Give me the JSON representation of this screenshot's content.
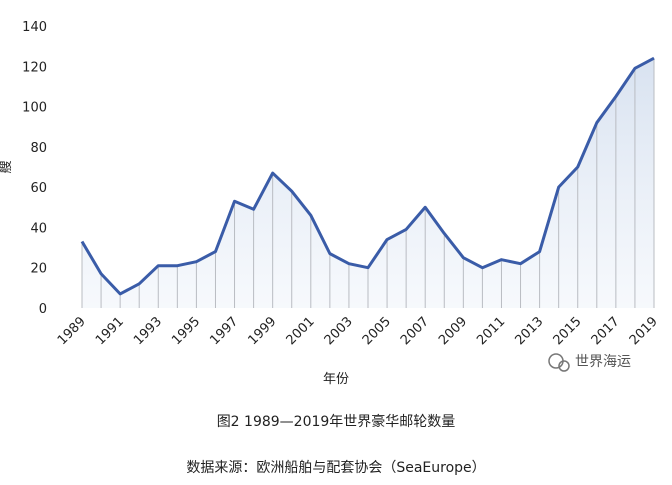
{
  "chart_data": {
    "type": "line",
    "categories": [
      "1989",
      null,
      "1991",
      null,
      "1993",
      null,
      "1995",
      null,
      "1997",
      null,
      "1999",
      null,
      "2001",
      null,
      "2003",
      null,
      "2005",
      null,
      "2007",
      null,
      "2009",
      null,
      "2011",
      null,
      "2013",
      null,
      "2015",
      null,
      "2017",
      null,
      "2019"
    ],
    "values": [
      33,
      17,
      7,
      12,
      21,
      21,
      23,
      28,
      53,
      49,
      67,
      58,
      46,
      27,
      22,
      20,
      34,
      39,
      50,
      37,
      25,
      20,
      24,
      22,
      28,
      60,
      70,
      92,
      105,
      119,
      124
    ],
    "color": "#3a5ca8",
    "ylim": [
      0,
      140
    ],
    "yticks": [
      0,
      20,
      40,
      60,
      80,
      100,
      120,
      140
    ],
    "ylabel": "艘",
    "xlabel": "年份",
    "caption": "图2 1989—2019年世界豪华邮轮数量",
    "source": "数据来源：欧洲船舶与配套协会（SeaEurope）",
    "watermark": "世界海运"
  }
}
